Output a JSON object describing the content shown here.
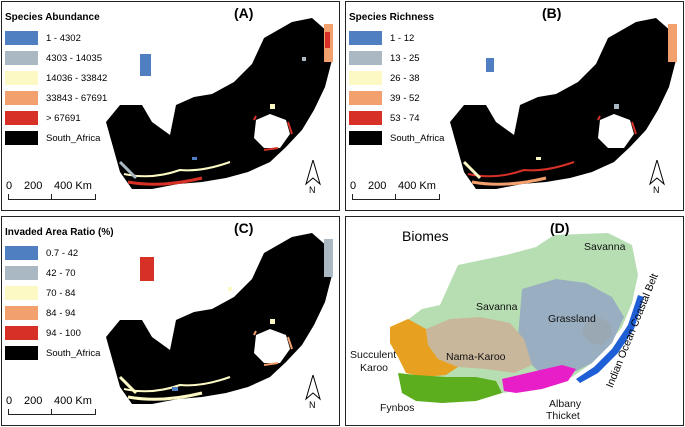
{
  "panels": {
    "A": {
      "label": "(A)",
      "legend_title": "Species Abundance",
      "legend": [
        {
          "label": "1 - 4302",
          "color": "#4f7fc0"
        },
        {
          "label": "4303 - 14035",
          "color": "#a9b8c3"
        },
        {
          "label": "14036 - 33842",
          "color": "#fdf9c4"
        },
        {
          "label": "33843 - 67691",
          "color": "#f2a06e"
        },
        {
          "label": "> 67691",
          "color": "#d73027"
        },
        {
          "label": "South_Africa",
          "color": "#000000"
        }
      ]
    },
    "B": {
      "label": "(B)",
      "legend_title": "Species Richness",
      "legend": [
        {
          "label": "1 - 12",
          "color": "#4f7fc0"
        },
        {
          "label": "13 - 25",
          "color": "#a9b8c3"
        },
        {
          "label": "26 - 38",
          "color": "#fdf9c4"
        },
        {
          "label": "39 - 52",
          "color": "#f2a06e"
        },
        {
          "label": "53 - 74",
          "color": "#d73027"
        },
        {
          "label": "South_Africa",
          "color": "#000000"
        }
      ]
    },
    "C": {
      "label": "(C)",
      "legend_title": "Invaded Area Ratio (%)",
      "legend": [
        {
          "label": "0.7 - 42",
          "color": "#4f7fc0"
        },
        {
          "label": "42 - 70",
          "color": "#a9b8c3"
        },
        {
          "label": "70 - 84",
          "color": "#fdf9c4"
        },
        {
          "label": "84 - 94",
          "color": "#f2a06e"
        },
        {
          "label": "94 - 100",
          "color": "#d73027"
        },
        {
          "label": "South_Africa",
          "color": "#000000"
        }
      ]
    },
    "D": {
      "label": "(D)",
      "title": "Biomes",
      "biomes": {
        "savanna": "Savanna",
        "grassland": "Grassland",
        "nama_karoo": "Nama-Karoo",
        "succulent_karoo_1": "Succulent",
        "succulent_karoo_2": "Karoo",
        "fynbos": "Fynbos",
        "albany_thicket_1": "Albany",
        "albany_thicket_2": "Thicket",
        "indian_ocean": "Indian Ocean Coastal Belt"
      },
      "colors": {
        "savanna": "#b7deb2",
        "grassland": "#99aec0",
        "nama_karoo": "#c9b79c",
        "succulent_karoo": "#e8a020",
        "fynbos": "#5cae1e",
        "albany_thicket": "#e81ec8",
        "indian_ocean": "#1f5fd6"
      }
    }
  },
  "scale": {
    "t0": "0",
    "t1": "200",
    "t2": "400 Km"
  },
  "north": "N"
}
